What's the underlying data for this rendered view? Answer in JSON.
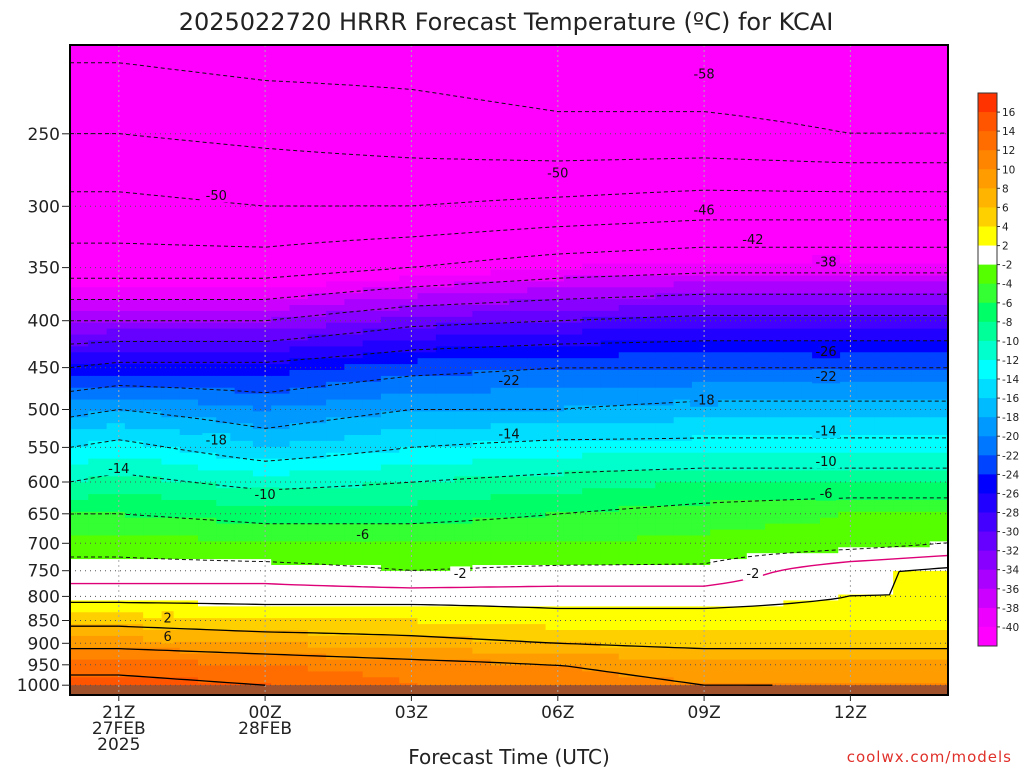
{
  "chart_data": {
    "type": "heatmap",
    "title": "2025022720 HRRR Forecast Temperature (ºC) for KCAI",
    "xlabel": "Forecast Time (UTC)",
    "credit": "coolwx.com/models",
    "x_ticks": [
      {
        "hour": 0,
        "label": "21Z",
        "sub1": "27FEB",
        "sub2": "2025"
      },
      {
        "hour": 3,
        "label": "00Z",
        "sub1": "28FEB",
        "sub2": ""
      },
      {
        "hour": 6,
        "label": "03Z",
        "sub1": "",
        "sub2": ""
      },
      {
        "hour": 9,
        "label": "06Z",
        "sub1": "",
        "sub2": ""
      },
      {
        "hour": 12,
        "label": "09Z",
        "sub1": "",
        "sub2": ""
      },
      {
        "hour": 15,
        "label": "12Z",
        "sub1": "",
        "sub2": ""
      }
    ],
    "x_range_hours": [
      -1,
      17
    ],
    "y_pressure_levels": [
      250,
      300,
      350,
      400,
      450,
      500,
      550,
      600,
      650,
      700,
      750,
      800,
      850,
      900,
      950,
      1000
    ],
    "y_range_hPa": [
      200,
      1025
    ],
    "y_scale": "log-pressure",
    "grid": true,
    "colorbar_labels": [
      16,
      14,
      12,
      10,
      8,
      6,
      4,
      2,
      -2,
      -4,
      -6,
      -8,
      -10,
      -12,
      -14,
      -16,
      -18,
      -20,
      -22,
      -24,
      -26,
      -28,
      -30,
      -32,
      -34,
      -36,
      -38,
      -40
    ],
    "colors": [
      {
        "max": 99,
        "min": 16,
        "color": "#ff3300"
      },
      {
        "max": 16,
        "min": 14,
        "color": "#ff5500"
      },
      {
        "max": 14,
        "min": 12,
        "color": "#ff6d00"
      },
      {
        "max": 12,
        "min": 10,
        "color": "#ff8500"
      },
      {
        "max": 10,
        "min": 8,
        "color": "#ff9d00"
      },
      {
        "max": 8,
        "min": 6,
        "color": "#ffb400"
      },
      {
        "max": 6,
        "min": 4,
        "color": "#ffd000"
      },
      {
        "max": 4,
        "min": 2,
        "color": "#ffff00"
      },
      {
        "max": 2,
        "min": -2,
        "color": "#ffffff"
      },
      {
        "max": -2,
        "min": -4,
        "color": "#55ff00"
      },
      {
        "max": -4,
        "min": -6,
        "color": "#33ff33"
      },
      {
        "max": -6,
        "min": -8,
        "color": "#00ff66"
      },
      {
        "max": -8,
        "min": -10,
        "color": "#00ff99"
      },
      {
        "max": -10,
        "min": -12,
        "color": "#00ffcc"
      },
      {
        "max": -12,
        "min": -14,
        "color": "#00ffff"
      },
      {
        "max": -14,
        "min": -16,
        "color": "#00ddff"
      },
      {
        "max": -16,
        "min": -18,
        "color": "#00bbff"
      },
      {
        "max": -18,
        "min": -20,
        "color": "#0099ff"
      },
      {
        "max": -20,
        "min": -22,
        "color": "#0077ff"
      },
      {
        "max": -22,
        "min": -24,
        "color": "#0044ff"
      },
      {
        "max": -24,
        "min": -26,
        "color": "#0000ff"
      },
      {
        "max": -26,
        "min": -28,
        "color": "#2200ff"
      },
      {
        "max": -28,
        "min": -30,
        "color": "#4400ff"
      },
      {
        "max": -30,
        "min": -32,
        "color": "#6600ff"
      },
      {
        "max": -32,
        "min": -34,
        "color": "#8800ff"
      },
      {
        "max": -34,
        "min": -36,
        "color": "#aa00ff"
      },
      {
        "max": -36,
        "min": -38,
        "color": "#cc00ff"
      },
      {
        "max": -38,
        "min": -40,
        "color": "#ee00ff"
      },
      {
        "max": -40,
        "min": -99,
        "color": "#ff00ff"
      }
    ],
    "ground_color": "#a0522d",
    "freezing_line_color": "#dd0077",
    "temperature_profiles": {
      "hours": [
        -1,
        0,
        3,
        6,
        9,
        12,
        15,
        17
      ],
      "levels": [
        200,
        250,
        300,
        350,
        400,
        450,
        500,
        550,
        600,
        650,
        700,
        750,
        800,
        850,
        900,
        950,
        1000,
        1025
      ],
      "temps": [
        [
          -59,
          -54,
          -49,
          -44,
          -34,
          -26,
          -19,
          -14,
          -10,
          -6,
          -3,
          -1,
          1,
          5,
          9,
          13,
          15,
          16
        ],
        [
          -59,
          -54,
          -49,
          -44,
          -34,
          -25,
          -18,
          -13,
          -9,
          -6,
          -3,
          -1,
          1,
          5,
          9,
          13,
          15,
          16
        ],
        [
          -60,
          -55,
          -50,
          -44,
          -34,
          -25,
          -20,
          -16,
          -11,
          -7,
          -4,
          -1,
          1,
          4,
          8,
          12,
          14,
          15
        ],
        [
          -60,
          -56,
          -50,
          -42,
          -31,
          -23,
          -18,
          -14,
          -10,
          -7,
          -4,
          -2,
          1,
          4,
          7,
          11,
          12,
          13
        ],
        [
          -61,
          -57,
          -49,
          -40,
          -30,
          -22,
          -18,
          -13,
          -9,
          -6,
          -4,
          -1.5,
          1,
          3,
          6,
          10,
          11,
          12
        ],
        [
          -61,
          -57,
          -48,
          -39,
          -29,
          -22,
          -17,
          -13,
          -8,
          -5,
          -3.5,
          -1.5,
          1,
          3,
          5,
          9,
          10,
          11
        ],
        [
          -61,
          -58,
          -48,
          -39,
          -29,
          -22,
          -17,
          -13,
          -8,
          -4,
          -3,
          1.5,
          2,
          3,
          5,
          9,
          10,
          10
        ],
        [
          -61,
          -58,
          -48,
          -39,
          -29,
          -22,
          -17,
          -13,
          -8,
          -4,
          -2,
          2.5,
          2,
          3,
          5,
          9,
          10,
          10
        ]
      ]
    },
    "contour_labels": [
      {
        "text": "-58",
        "hour": 12,
        "hPa": 215
      },
      {
        "text": "-50",
        "hour": 2,
        "hPa": 292
      },
      {
        "text": "-50",
        "hour": 9,
        "hPa": 276
      },
      {
        "text": "-46",
        "hour": 12,
        "hPa": 303
      },
      {
        "text": "-42",
        "hour": 13,
        "hPa": 326
      },
      {
        "text": "-38",
        "hour": 14.5,
        "hPa": 345
      },
      {
        "text": "-26",
        "hour": 14.5,
        "hPa": 432
      },
      {
        "text": "-22",
        "hour": 8,
        "hPa": 465
      },
      {
        "text": "-22",
        "hour": 14.5,
        "hPa": 460
      },
      {
        "text": "-18",
        "hour": 2,
        "hPa": 540
      },
      {
        "text": "-18",
        "hour": 12,
        "hPa": 488
      },
      {
        "text": "-14",
        "hour": 0,
        "hPa": 580
      },
      {
        "text": "-14",
        "hour": 8,
        "hPa": 532
      },
      {
        "text": "-14",
        "hour": 14.5,
        "hPa": 528
      },
      {
        "text": "-10",
        "hour": 3,
        "hPa": 619
      },
      {
        "text": "-10",
        "hour": 14.5,
        "hPa": 570
      },
      {
        "text": "-6",
        "hour": 5,
        "hPa": 685
      },
      {
        "text": "-6",
        "hour": 14.5,
        "hPa": 618
      },
      {
        "text": "-2",
        "hour": 7,
        "hPa": 755
      },
      {
        "text": "-2",
        "hour": 13,
        "hPa": 755
      },
      {
        "text": "2",
        "hour": 1,
        "hPa": 845
      },
      {
        "text": "6",
        "hour": 1,
        "hPa": 885
      }
    ]
  }
}
